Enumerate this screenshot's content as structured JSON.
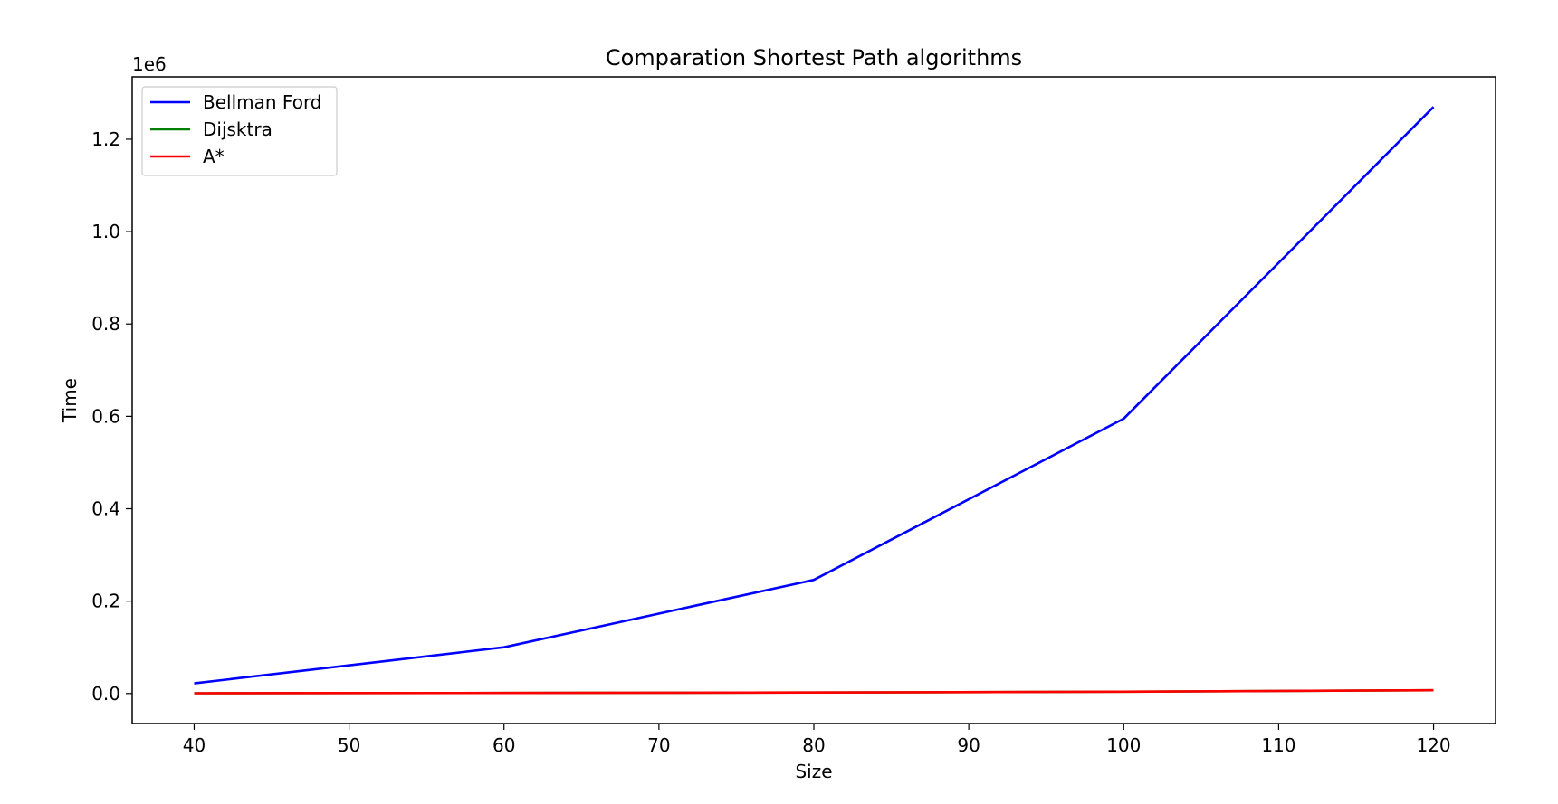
{
  "chart_data": {
    "type": "line",
    "title": "Comparation Shortest Path algorithms",
    "xlabel": "Size",
    "ylabel": "Time",
    "y_offset_label": "1e6",
    "x": [
      40,
      60,
      80,
      100,
      120
    ],
    "xlim": [
      36,
      124
    ],
    "ylim": [
      -0.065,
      1.335
    ],
    "y_scale_factor": 1000000,
    "x_ticks": [
      40,
      50,
      60,
      70,
      80,
      90,
      100,
      110,
      120
    ],
    "y_ticks": [
      0.0,
      0.2,
      0.4,
      0.6,
      0.8,
      1.0,
      1.2
    ],
    "y_tick_labels": [
      "0.0",
      "0.2",
      "0.4",
      "0.6",
      "0.8",
      "1.0",
      "1.2"
    ],
    "grid": false,
    "legend_position": "top-left",
    "series": [
      {
        "name": "Bellman Ford",
        "color": "#0000ff",
        "values": [
          0.022,
          0.1,
          0.246,
          0.595,
          1.27
        ]
      },
      {
        "name": "Dijsktra",
        "color": "#008000",
        "values": [
          0.0005,
          0.0012,
          0.0022,
          0.004,
          0.007
        ]
      },
      {
        "name": "A*",
        "color": "#ff0000",
        "values": [
          0.0005,
          0.0012,
          0.0022,
          0.004,
          0.007
        ]
      }
    ]
  }
}
